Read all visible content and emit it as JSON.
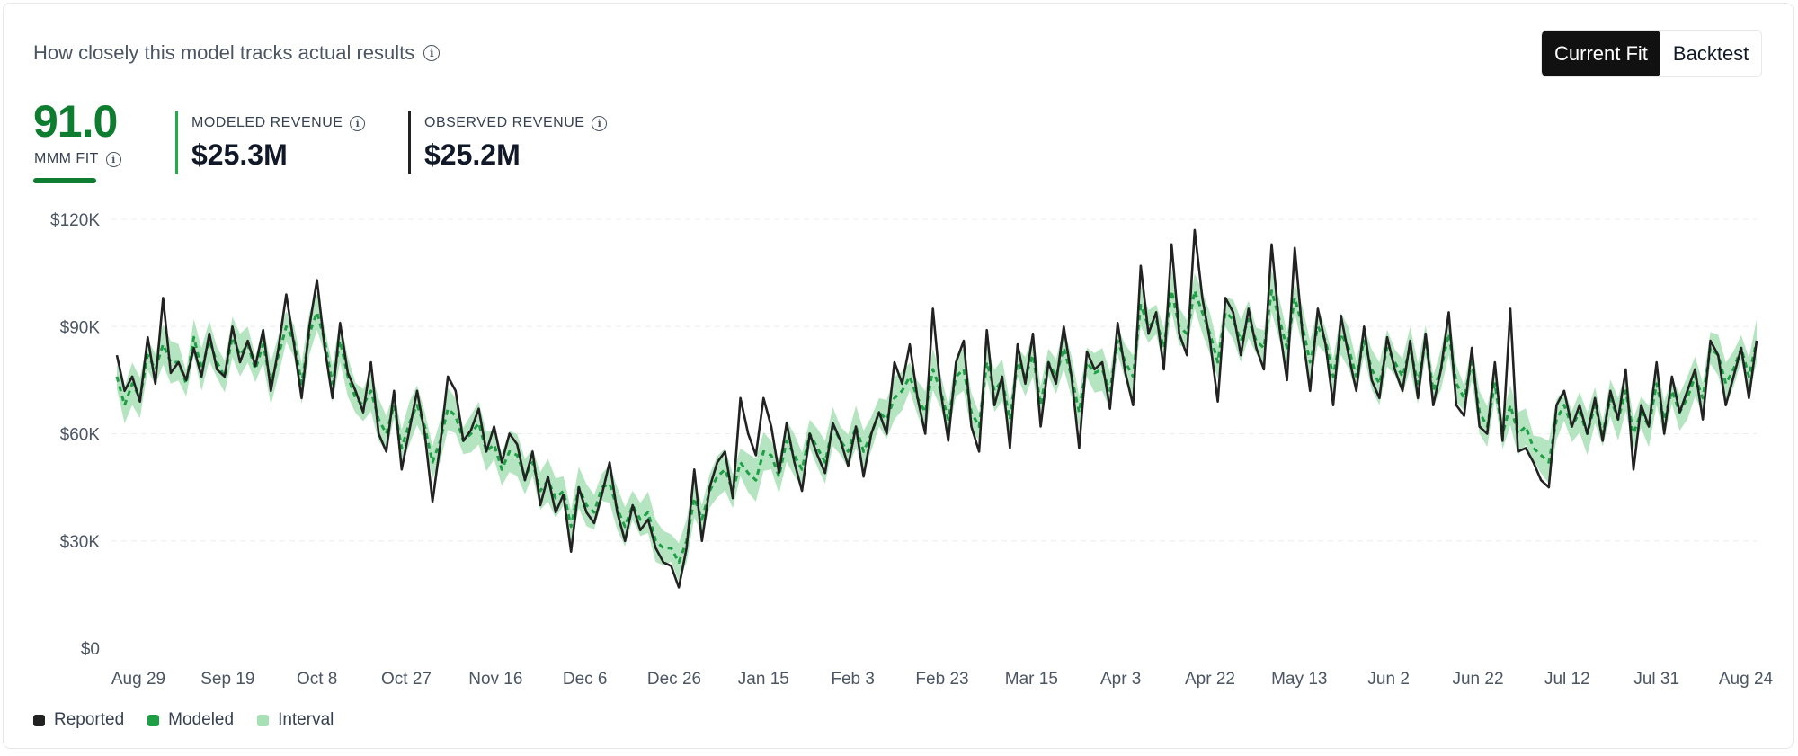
{
  "header": {
    "title": "How closely this model tracks actual results",
    "toggle": [
      "Current Fit",
      "Backtest"
    ],
    "active_toggle": 0
  },
  "fit": {
    "score": "91.0",
    "label": "MMM FIT",
    "color": "#0f7d2f"
  },
  "kpis": [
    {
      "label": "MODELED REVENUE",
      "value": "$25.3M",
      "bar_color": "#1fae48"
    },
    {
      "label": "OBSERVED REVENUE",
      "value": "$25.2M",
      "bar_color": "#222222"
    }
  ],
  "legend": [
    {
      "label": "Reported",
      "color": "#222222"
    },
    {
      "label": "Modeled",
      "color": "#1e9e45"
    },
    {
      "label": "Interval",
      "color": "#a8e0b5"
    }
  ],
  "chart_data": {
    "type": "line",
    "x_start": "Aug 29",
    "x_end": "Aug 24",
    "x_ticks": [
      "Aug 29",
      "Sep 19",
      "Oct 8",
      "Oct 27",
      "Nov 16",
      "Dec 6",
      "Dec 26",
      "Jan 15",
      "Feb 3",
      "Feb 23",
      "Mar 15",
      "Apr 3",
      "Apr 22",
      "May 13",
      "Jun 2",
      "Jun 22",
      "Jul 12",
      "Jul 31",
      "Aug 24"
    ],
    "y_ticks": [
      "$0",
      "$30K",
      "$60K",
      "$90K",
      "$120K"
    ],
    "ylim": [
      0,
      120000
    ],
    "grid": true,
    "legend_position": "bottom-left",
    "series": [
      {
        "name": "Reported",
        "style": "solid",
        "color": "#222222",
        "values": [
          82000,
          72000,
          76000,
          69000,
          87000,
          74000,
          98000,
          77000,
          80000,
          75000,
          84000,
          76000,
          88000,
          78000,
          76000,
          90000,
          80000,
          86000,
          79000,
          89000,
          72000,
          84000,
          99000,
          85000,
          70000,
          90000,
          103000,
          84000,
          70000,
          91000,
          77000,
          72000,
          66000,
          80000,
          60000,
          55000,
          72000,
          50000,
          61000,
          72000,
          60000,
          41000,
          57000,
          76000,
          72000,
          58000,
          61000,
          67000,
          55000,
          62000,
          52000,
          60000,
          57000,
          47000,
          55000,
          40000,
          48000,
          38000,
          43000,
          27000,
          45000,
          38000,
          35000,
          43000,
          52000,
          38000,
          30000,
          40000,
          33000,
          36000,
          28000,
          24000,
          23000,
          17000,
          28000,
          50000,
          30000,
          45000,
          52000,
          55000,
          42000,
          70000,
          60000,
          54000,
          70000,
          62000,
          49000,
          63000,
          52000,
          44000,
          60000,
          54000,
          49000,
          63000,
          58000,
          51000,
          62000,
          48000,
          60000,
          66000,
          60000,
          80000,
          74000,
          85000,
          70000,
          60000,
          95000,
          72000,
          58000,
          80000,
          86000,
          62000,
          55000,
          89000,
          68000,
          76000,
          56000,
          85000,
          74000,
          88000,
          62000,
          80000,
          74000,
          90000,
          76000,
          56000,
          83000,
          78000,
          80000,
          67000,
          91000,
          77000,
          68000,
          107000,
          88000,
          94000,
          78000,
          113000,
          88000,
          82000,
          117000,
          98000,
          86000,
          69000,
          98000,
          94000,
          82000,
          95000,
          84000,
          78000,
          113000,
          90000,
          75000,
          112000,
          88000,
          72000,
          95000,
          85000,
          68000,
          93000,
          82000,
          72000,
          90000,
          75000,
          70000,
          87000,
          78000,
          72000,
          86000,
          70000,
          88000,
          68000,
          78000,
          94000,
          68000,
          65000,
          84000,
          62000,
          60000,
          80000,
          58000,
          95000,
          55000,
          56000,
          52000,
          47000,
          45000,
          68000,
          72000,
          62000,
          68000,
          60000,
          70000,
          58000,
          72000,
          64000,
          78000,
          50000,
          68000,
          62000,
          80000,
          60000,
          76000,
          66000,
          72000,
          78000,
          64000,
          86000,
          82000,
          68000,
          76000,
          84000,
          70000,
          86000
        ]
      },
      {
        "name": "Modeled",
        "style": "dashed",
        "color": "#1e9e45",
        "values": [
          76000,
          68000,
          74000,
          70000,
          82000,
          78000,
          85000,
          80000,
          80000,
          74000,
          87000,
          78000,
          86000,
          80000,
          76000,
          87000,
          82000,
          85000,
          78000,
          85000,
          74000,
          82000,
          90000,
          86000,
          74000,
          88000,
          94000,
          86000,
          74000,
          86000,
          76000,
          70000,
          68000,
          72000,
          64000,
          60000,
          68000,
          56000,
          63000,
          68000,
          62000,
          52000,
          58000,
          67000,
          65000,
          58000,
          60000,
          63000,
          55000,
          57000,
          50000,
          55000,
          54000,
          48000,
          52000,
          44000,
          47000,
          42000,
          44000,
          34000,
          45000,
          40000,
          38000,
          45000,
          46000,
          39000,
          34000,
          40000,
          36000,
          38000,
          30000,
          28000,
          28000,
          24000,
          30000,
          42000,
          36000,
          44000,
          48000,
          50000,
          44000,
          52000,
          49000,
          47000,
          55000,
          54000,
          48000,
          58000,
          54000,
          50000,
          60000,
          56000,
          52000,
          62000,
          58000,
          55000,
          62000,
          55000,
          60000,
          66000,
          64000,
          70000,
          72000,
          76000,
          70000,
          66000,
          78000,
          72000,
          64000,
          76000,
          78000,
          66000,
          62000,
          80000,
          72000,
          75000,
          64000,
          80000,
          76000,
          82000,
          68000,
          80000,
          76000,
          84000,
          76000,
          66000,
          80000,
          77000,
          78000,
          72000,
          86000,
          80000,
          76000,
          96000,
          90000,
          92000,
          84000,
          100000,
          90000,
          88000,
          100000,
          94000,
          88000,
          80000,
          94000,
          92000,
          86000,
          92000,
          86000,
          84000,
          100000,
          92000,
          84000,
          98000,
          90000,
          80000,
          90000,
          86000,
          76000,
          88000,
          84000,
          76000,
          86000,
          78000,
          74000,
          84000,
          80000,
          76000,
          84000,
          74000,
          86000,
          72000,
          78000,
          88000,
          74000,
          70000,
          80000,
          66000,
          62000,
          74000,
          60000,
          68000,
          60000,
          62000,
          56000,
          54000,
          52000,
          64000,
          68000,
          62000,
          66000,
          60000,
          68000,
          60000,
          70000,
          64000,
          72000,
          60000,
          66000,
          62000,
          74000,
          64000,
          72000,
          66000,
          70000,
          76000,
          70000,
          84000,
          82000,
          74000,
          78000,
          84000,
          76000,
          86000
        ]
      }
    ]
  }
}
